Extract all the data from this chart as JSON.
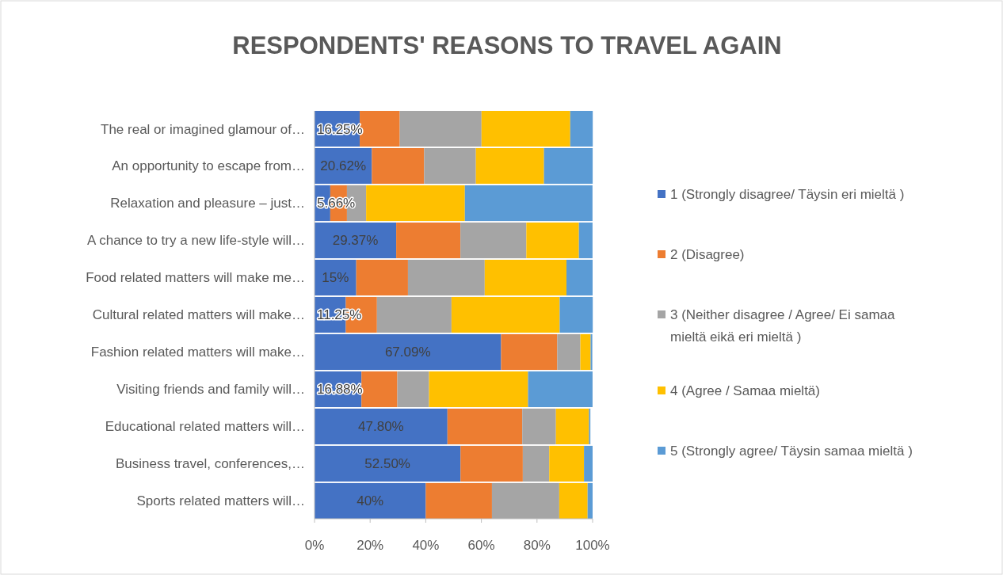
{
  "chart_data": {
    "type": "bar",
    "title": "RESPONDENTS' REASONS TO TRAVEL AGAIN",
    "orientation": "horizontal",
    "stacked": true,
    "categories": [
      "The real or imagined glamour of…",
      "An opportunity to escape from…",
      "Relaxation and pleasure – just…",
      "A chance to try a new life-style will…",
      "Food related matters will make me…",
      "Cultural related matters will make…",
      "Fashion related matters will make…",
      "Visiting friends and family will…",
      "Educational related matters will…",
      "Business travel, conferences,…",
      "Sports related matters will…"
    ],
    "series": [
      {
        "name": "1 (Strongly disagree/ Täysin eri mieltä )",
        "color": "#4472c4",
        "values": [
          16.25,
          20.62,
          5.66,
          29.37,
          15,
          11.25,
          67.09,
          16.88,
          47.8,
          52.5,
          40
        ],
        "value_labels": [
          "16.25%",
          "20.62%",
          "5.66%",
          "29.37%",
          "15%",
          "11.25%",
          "67.09%",
          "16.88%",
          "47.80%",
          "52.50%",
          "40%"
        ]
      },
      {
        "name": "2 (Disagree)",
        "color": "#ed7d31",
        "values": [
          14.4,
          18.8,
          6,
          23.1,
          18.6,
          11.2,
          20.2,
          12.9,
          26.9,
          22.4,
          23.8
        ]
      },
      {
        "name": "3 (Neither disagree / Agree/ Ei samaa mieltä eikä eri mieltä )",
        "color": "#a5a5a5",
        "values": [
          29.4,
          18.6,
          6.9,
          23.7,
          27.6,
          26.8,
          8.3,
          11.4,
          12.1,
          9.5,
          24.2
        ]
      },
      {
        "name": "4 (Agree / Samaa mieltä)",
        "color": "#ffc000",
        "values": [
          31.9,
          24.5,
          35.5,
          18.9,
          29.4,
          38.9,
          3.7,
          35.6,
          11.9,
          12.5,
          10.2
        ]
      },
      {
        "name": "5 (Strongly agree/ Täysin samaa mieltä )",
        "color": "#5b9bd5",
        "values": [
          8.1,
          17.5,
          45.9,
          4.9,
          9.4,
          11.9,
          0.6,
          23.2,
          0.5,
          3.1,
          1.8
        ]
      }
    ],
    "xlim": [
      0,
      100
    ],
    "xticks": [
      {
        "value": 0,
        "label": "0%"
      },
      {
        "value": 20,
        "label": "20%"
      },
      {
        "value": 40,
        "label": "40%"
      },
      {
        "value": 60,
        "label": "60%"
      },
      {
        "value": 80,
        "label": "80%"
      },
      {
        "value": 100,
        "label": "100%"
      }
    ],
    "legend": "right"
  }
}
